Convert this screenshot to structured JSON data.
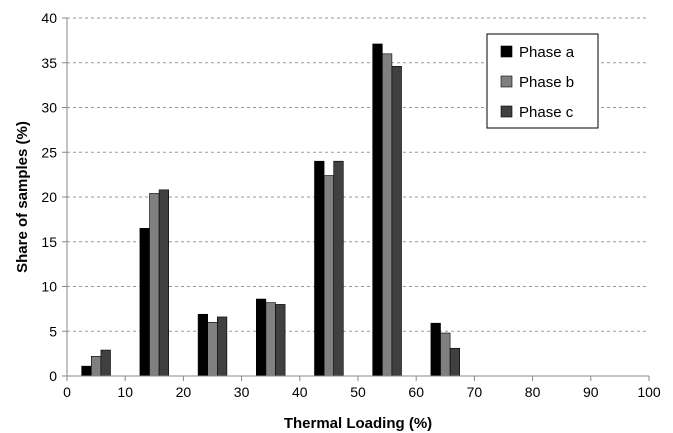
{
  "chart_data": {
    "type": "bar",
    "xlabel": "Thermal Loading (%)",
    "ylabel": "Share of samples (%)",
    "xlim": [
      0,
      100
    ],
    "ylim": [
      0,
      40
    ],
    "xticks": [
      0,
      10,
      20,
      30,
      40,
      50,
      60,
      70,
      80,
      90,
      100
    ],
    "yticks": [
      0,
      5,
      10,
      15,
      20,
      25,
      30,
      35,
      40
    ],
    "grid": "horizontal dashed",
    "legend_position": "top-right",
    "x": [
      5,
      15,
      25,
      35,
      45,
      55,
      65
    ],
    "series": [
      {
        "name": "Phase a",
        "color": "#000000",
        "values": [
          1.1,
          16.5,
          6.9,
          8.6,
          24.0,
          37.1,
          5.9
        ]
      },
      {
        "name": "Phase b",
        "color": "#808080",
        "values": [
          2.2,
          20.4,
          6.0,
          8.2,
          22.4,
          36.0,
          4.8
        ]
      },
      {
        "name": "Phase c",
        "color": "#404040",
        "values": [
          2.9,
          20.8,
          6.6,
          8.0,
          24.0,
          34.6,
          3.1
        ]
      }
    ]
  }
}
